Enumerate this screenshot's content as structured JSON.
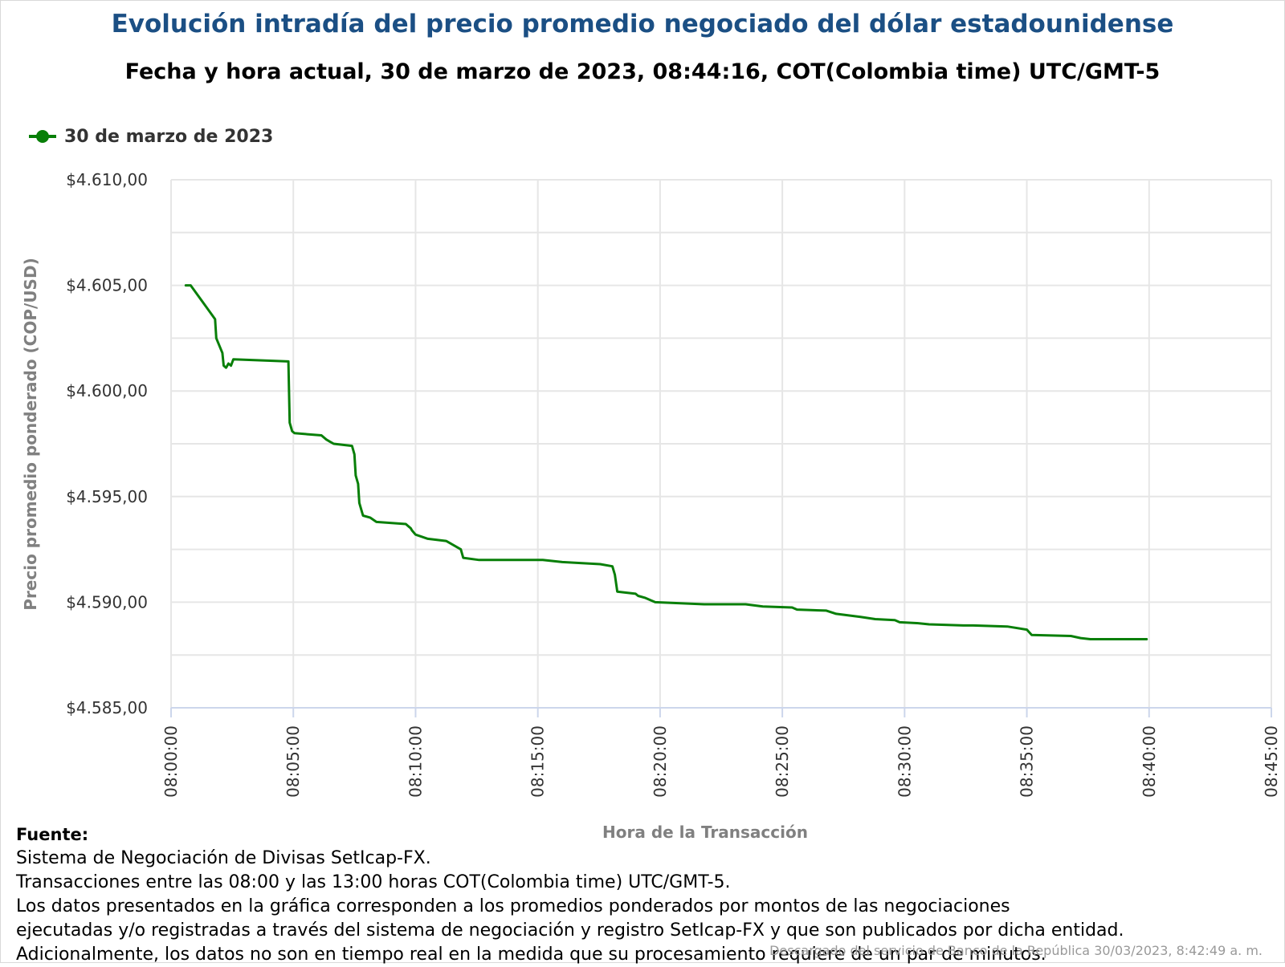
{
  "chart_data": {
    "type": "line",
    "title": "Evolución intradía del precio promedio negociado del dólar estadounidense",
    "subtitle": "Fecha y hora actual, 30 de marzo de 2023, 08:44:16, COT(Colombia time) UTC/GMT-5",
    "xlabel": "Hora de la Transacción",
    "ylabel": "Precio promedio ponderado (COP/USD)",
    "ylim": [
      4585,
      4610
    ],
    "xlim": [
      "08:00:00",
      "08:45:00"
    ],
    "yticks": [
      4585,
      4590,
      4595,
      4600,
      4605,
      4610
    ],
    "ytick_labels": [
      "$4.585,00",
      "$4.590,00",
      "$4.595,00",
      "$4.600,00",
      "$4.605,00",
      "$4.610,00"
    ],
    "xticks": [
      "08:00:00",
      "08:05:00",
      "08:10:00",
      "08:15:00",
      "08:20:00",
      "08:25:00",
      "08:30:00",
      "08:35:00",
      "08:40:00",
      "08:45:00"
    ],
    "grid": true,
    "legend_position": "top-left",
    "series": [
      {
        "name": "30 de marzo de 2023",
        "color": "#087f08",
        "points": [
          [
            "08:00:36",
            4605.0
          ],
          [
            "08:00:48",
            4605.0
          ],
          [
            "08:01:48",
            4603.4
          ],
          [
            "08:01:51",
            4602.5
          ],
          [
            "08:02:06",
            4601.8
          ],
          [
            "08:02:09",
            4601.2
          ],
          [
            "08:02:15",
            4601.1
          ],
          [
            "08:02:21",
            4601.3
          ],
          [
            "08:02:27",
            4601.2
          ],
          [
            "08:02:33",
            4601.5
          ],
          [
            "08:04:48",
            4601.4
          ],
          [
            "08:04:51",
            4598.5
          ],
          [
            "08:04:57",
            4598.1
          ],
          [
            "08:05:03",
            4598.0
          ],
          [
            "08:06:09",
            4597.9
          ],
          [
            "08:06:21",
            4597.7
          ],
          [
            "08:06:30",
            4597.6
          ],
          [
            "08:06:39",
            4597.5
          ],
          [
            "08:07:24",
            4597.4
          ],
          [
            "08:07:30",
            4597.0
          ],
          [
            "08:07:33",
            4596.0
          ],
          [
            "08:07:39",
            4595.6
          ],
          [
            "08:07:42",
            4594.7
          ],
          [
            "08:07:51",
            4594.1
          ],
          [
            "08:08:09",
            4594.0
          ],
          [
            "08:08:24",
            4593.8
          ],
          [
            "08:09:36",
            4593.7
          ],
          [
            "08:09:48",
            4593.5
          ],
          [
            "08:09:51",
            4593.4
          ],
          [
            "08:10:00",
            4593.2
          ],
          [
            "08:10:15",
            4593.1
          ],
          [
            "08:10:30",
            4593.0
          ],
          [
            "08:11:15",
            4592.9
          ],
          [
            "08:11:24",
            4592.8
          ],
          [
            "08:11:51",
            4592.5
          ],
          [
            "08:11:57",
            4592.1
          ],
          [
            "08:12:36",
            4592.0
          ],
          [
            "08:15:12",
            4592.0
          ],
          [
            "08:16:00",
            4591.9
          ],
          [
            "08:17:33",
            4591.8
          ],
          [
            "08:18:03",
            4591.7
          ],
          [
            "08:18:09",
            4591.3
          ],
          [
            "08:18:15",
            4590.5
          ],
          [
            "08:19:00",
            4590.4
          ],
          [
            "08:19:06",
            4590.3
          ],
          [
            "08:19:24",
            4590.2
          ],
          [
            "08:19:48",
            4590.0
          ],
          [
            "08:21:48",
            4589.9
          ],
          [
            "08:23:30",
            4589.9
          ],
          [
            "08:24:12",
            4589.8
          ],
          [
            "08:25:24",
            4589.75
          ],
          [
            "08:25:36",
            4589.65
          ],
          [
            "08:26:48",
            4589.6
          ],
          [
            "08:27:12",
            4589.45
          ],
          [
            "08:28:12",
            4589.3
          ],
          [
            "08:28:48",
            4589.2
          ],
          [
            "08:29:36",
            4589.15
          ],
          [
            "08:29:48",
            4589.05
          ],
          [
            "08:30:36",
            4589.0
          ],
          [
            "08:31:00",
            4588.95
          ],
          [
            "08:32:24",
            4588.9
          ],
          [
            "08:32:48",
            4588.9
          ],
          [
            "08:34:12",
            4588.85
          ],
          [
            "08:35:00",
            4588.7
          ],
          [
            "08:35:12",
            4588.45
          ],
          [
            "08:36:48",
            4588.4
          ],
          [
            "08:37:12",
            4588.3
          ],
          [
            "08:37:36",
            4588.25
          ],
          [
            "08:39:54",
            4588.25
          ]
        ]
      }
    ]
  },
  "footer": {
    "heading": "Fuente:",
    "lines": [
      "Sistema de Negociación de Divisas SetIcap-FX.",
      "Transacciones entre las 08:00 y las 13:00 horas COT(Colombia time) UTC/GMT-5.",
      "Los datos presentados en la gráfica corresponden a los promedios ponderados por montos de las negociaciones",
      "ejecutadas y/o registradas a través del sistema de negociación y registro SetIcap-FX y que son publicados por dicha entidad.",
      "Adicionalmente, los datos no son en tiempo real en la medida que su procesamiento requiere de un par de minutos."
    ],
    "credit": "Descargado del servicio de Banco de la República 30/03/2023, 8:42:49 a. m."
  },
  "colors": {
    "title": "#1b4f84",
    "series": "#087f08",
    "grid": "#e6e6e6",
    "axis": "#ccd6eb",
    "axis_title": "#808080"
  }
}
